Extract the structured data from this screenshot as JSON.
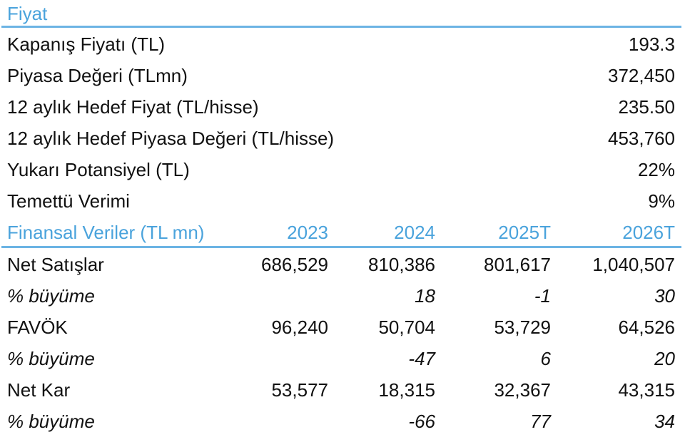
{
  "price_section": {
    "title": "Fiyat",
    "rows": [
      {
        "label": "Kapanış Fiyatı (TL)",
        "value": "193.3"
      },
      {
        "label": "Piyasa Değeri (TLmn)",
        "value": "372,450"
      },
      {
        "label": "12 aylık Hedef Fiyat (TL/hisse)",
        "value": "235.50"
      },
      {
        "label": "12 aylık Hedef Piyasa Değeri (TL/hisse)",
        "value": "453,760"
      },
      {
        "label": "Yukarı Potansiyel (TL)",
        "value": "22%"
      },
      {
        "label": "Temettü Verimi",
        "value": "9%"
      }
    ]
  },
  "financials": {
    "title": "Finansal Veriler (TL mn)",
    "years": [
      "2023",
      "2024",
      "2025T",
      "2026T"
    ],
    "rows": [
      {
        "label": "Net Satışlar",
        "values": [
          "686,529",
          "810,386",
          "801,617",
          "1,040,507"
        ]
      },
      {
        "label": "% büyüme",
        "values": [
          "",
          "18",
          "-1",
          "30"
        ]
      },
      {
        "label": "FAVÖK",
        "values": [
          "96,240",
          "50,704",
          "53,729",
          "64,526"
        ]
      },
      {
        "label": "% büyüme",
        "values": [
          "",
          "-47",
          "6",
          "20"
        ]
      },
      {
        "label": "Net Kar",
        "values": [
          "53,577",
          "18,315",
          "32,367",
          "43,315"
        ]
      },
      {
        "label": "% büyüme",
        "values": [
          "",
          "-66",
          "77",
          "34"
        ]
      }
    ]
  },
  "colors": {
    "accent": "#4aa3dc",
    "rule": "#6cb4e4",
    "text": "#111111"
  }
}
